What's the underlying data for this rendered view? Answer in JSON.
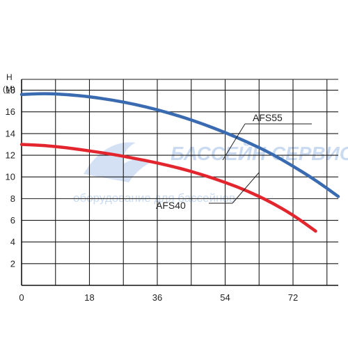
{
  "chart_data": {
    "type": "line",
    "ylabel_lines": [
      "H",
      "(M)"
    ],
    "xlabel": "",
    "x_ticks": [
      0,
      18,
      36,
      54,
      72
    ],
    "y_ticks": [
      2,
      4,
      6,
      8,
      10,
      12,
      14,
      16,
      18
    ],
    "xlim": [
      0,
      84
    ],
    "ylim": [
      0,
      19
    ],
    "grid": true,
    "series": [
      {
        "name": "AFS55",
        "color": "#3a6bb0",
        "x": [
          0,
          6,
          12,
          18,
          24,
          30,
          36,
          42,
          48,
          54,
          60,
          66,
          72,
          78,
          84
        ],
        "y": [
          17.6,
          17.7,
          17.6,
          17.4,
          17.1,
          16.7,
          16.2,
          15.6,
          14.9,
          14.1,
          13.2,
          12.2,
          11.0,
          9.7,
          8.2
        ]
      },
      {
        "name": "AFS40",
        "color": "#e3262e",
        "x": [
          0,
          6,
          12,
          18,
          24,
          30,
          36,
          42,
          48,
          54,
          60,
          66,
          72,
          78
        ],
        "y": [
          13.0,
          12.9,
          12.7,
          12.4,
          12.1,
          11.7,
          11.3,
          10.8,
          10.2,
          9.5,
          8.7,
          7.7,
          6.5,
          5.0
        ]
      }
    ]
  },
  "watermark": {
    "title": "БАССЕЙН СЕРВИС",
    "subtitle": "оборудование для бассейнов"
  }
}
